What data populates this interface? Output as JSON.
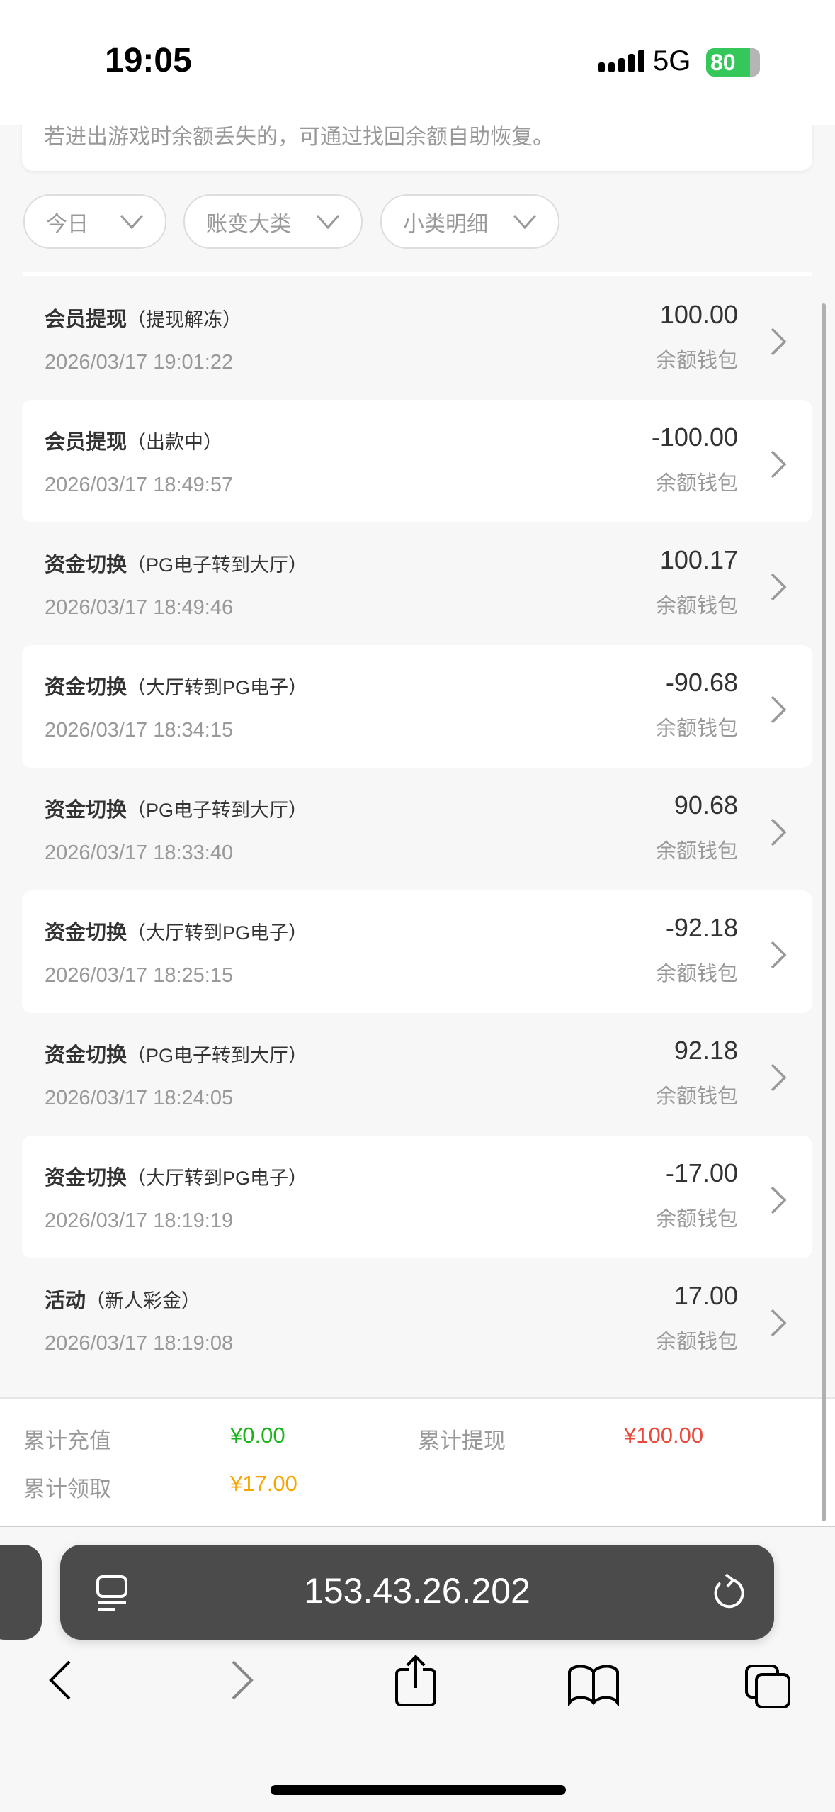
{
  "status_bar": {
    "time": "19:05",
    "network": "5G",
    "battery": "80"
  },
  "notice": {
    "text": "若进出游戏时余额丢失的，可通过找回余额自助恢复。"
  },
  "filters": [
    {
      "label": "今日"
    },
    {
      "label": "账变大类"
    },
    {
      "label": "小类明细"
    }
  ],
  "records": [
    {
      "title": "会员提现",
      "detail": "（提现解冻）",
      "time": "2026/03/17 19:01:22",
      "amount": "100.00",
      "wallet": "余额钱包"
    },
    {
      "title": "会员提现",
      "detail": "（出款中）",
      "time": "2026/03/17 18:49:57",
      "amount": "-100.00",
      "wallet": "余额钱包"
    },
    {
      "title": "资金切换",
      "detail": "（PG电子转到大厅）",
      "time": "2026/03/17 18:49:46",
      "amount": "100.17",
      "wallet": "余额钱包"
    },
    {
      "title": "资金切换",
      "detail": "（大厅转到PG电子）",
      "time": "2026/03/17 18:34:15",
      "amount": "-90.68",
      "wallet": "余额钱包"
    },
    {
      "title": "资金切换",
      "detail": "（PG电子转到大厅）",
      "time": "2026/03/17 18:33:40",
      "amount": "90.68",
      "wallet": "余额钱包"
    },
    {
      "title": "资金切换",
      "detail": "（大厅转到PG电子）",
      "time": "2026/03/17 18:25:15",
      "amount": "-92.18",
      "wallet": "余额钱包"
    },
    {
      "title": "资金切换",
      "detail": "（PG电子转到大厅）",
      "time": "2026/03/17 18:24:05",
      "amount": "92.18",
      "wallet": "余额钱包"
    },
    {
      "title": "资金切换",
      "detail": "（大厅转到PG电子）",
      "time": "2026/03/17 18:19:19",
      "amount": "-17.00",
      "wallet": "余额钱包"
    },
    {
      "title": "活动",
      "detail": "（新人彩金）",
      "time": "2026/03/17 18:19:08",
      "amount": "17.00",
      "wallet": "余额钱包"
    }
  ],
  "summary": {
    "recharge_label": "累计充值",
    "recharge_value": "¥0.00",
    "recharge_color": "#1db31d",
    "withdraw_label": "累计提现",
    "withdraw_value": "¥100.00",
    "withdraw_color": "#e84a3c",
    "claim_label": "累计领取",
    "claim_value": "¥17.00",
    "claim_color": "#f5a500"
  },
  "browser": {
    "url": "153.43.26.202"
  }
}
